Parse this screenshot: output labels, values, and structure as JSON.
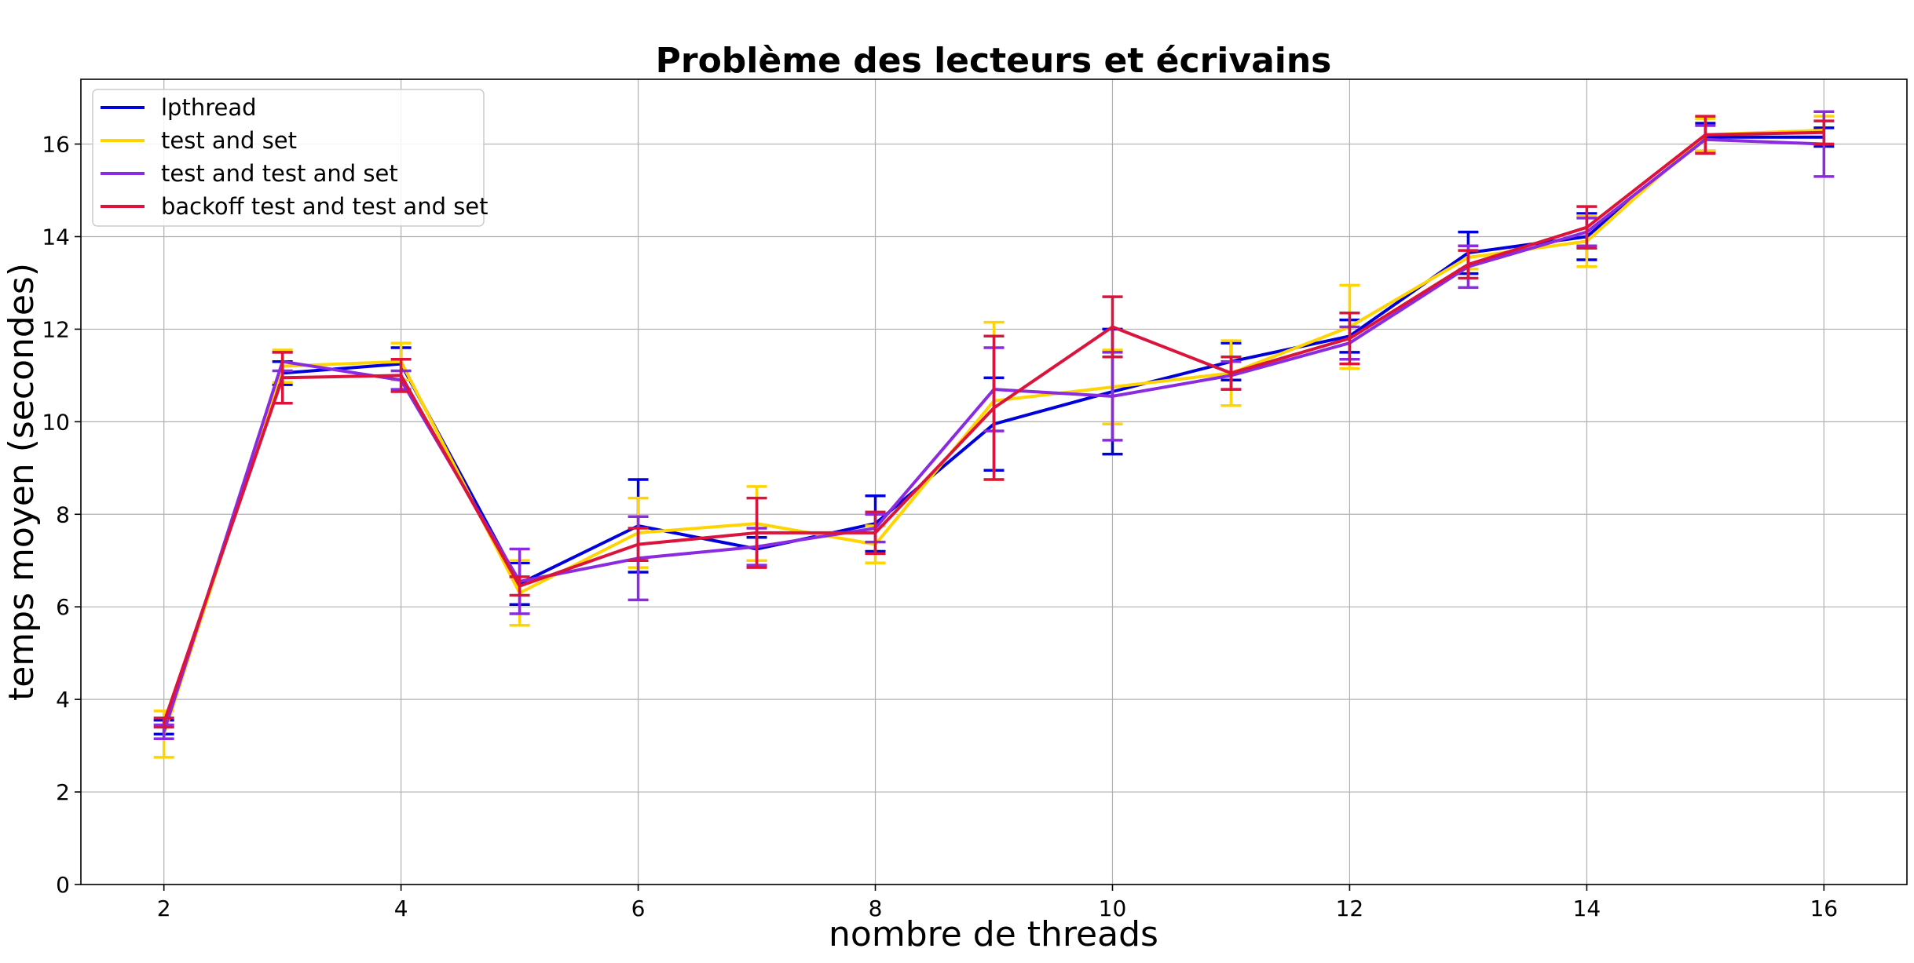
{
  "chart_data": {
    "type": "line",
    "title": "Problème des lecteurs et écrivains",
    "xlabel": "nombre de threads",
    "ylabel": "temps moyen (secondes)",
    "xlim": [
      1.3,
      16.7
    ],
    "ylim": [
      0,
      17.4
    ],
    "xticks": [
      2,
      4,
      6,
      8,
      10,
      12,
      14,
      16
    ],
    "yticks": [
      0,
      2,
      4,
      6,
      8,
      10,
      12,
      14,
      16
    ],
    "grid": true,
    "legend_position": "top-left",
    "x": [
      2,
      3,
      4,
      5,
      6,
      7,
      8,
      9,
      10,
      11,
      12,
      13,
      14,
      15,
      16
    ],
    "series": [
      {
        "name": "lpthread",
        "color": "#0000dd",
        "values": [
          3.4,
          11.05,
          11.25,
          6.5,
          7.75,
          7.25,
          7.8,
          9.95,
          10.65,
          11.3,
          11.85,
          13.65,
          14.0,
          16.15,
          16.15
        ],
        "errors": [
          0.15,
          0.25,
          0.35,
          0.45,
          1.0,
          0.25,
          0.6,
          1.0,
          1.35,
          0.4,
          0.35,
          0.45,
          0.5,
          0.3,
          0.2
        ]
      },
      {
        "name": "test and set",
        "color": "#ffd400",
        "values": [
          3.25,
          11.2,
          11.3,
          6.3,
          7.6,
          7.8,
          7.35,
          10.45,
          10.75,
          11.05,
          12.05,
          13.55,
          13.9,
          16.2,
          16.3
        ],
        "errors": [
          0.5,
          0.35,
          0.4,
          0.7,
          0.75,
          0.8,
          0.4,
          1.7,
          0.8,
          0.7,
          0.9,
          0.25,
          0.55,
          0.35,
          0.3
        ]
      },
      {
        "name": "test and test and set",
        "color": "#8a2be2",
        "values": [
          3.3,
          11.3,
          10.9,
          6.55,
          7.05,
          7.3,
          7.7,
          10.7,
          10.55,
          11.0,
          11.7,
          13.35,
          14.1,
          16.1,
          16.0
        ],
        "errors": [
          0.15,
          0.2,
          0.2,
          0.7,
          0.9,
          0.4,
          0.3,
          0.9,
          0.95,
          0.3,
          0.35,
          0.45,
          0.3,
          0.3,
          0.7
        ]
      },
      {
        "name": "backoff test and test and set",
        "color": "#dc143c",
        "values": [
          3.5,
          10.95,
          11.0,
          6.45,
          7.35,
          7.6,
          7.6,
          10.3,
          12.05,
          11.05,
          11.8,
          13.4,
          14.2,
          16.2,
          16.25
        ],
        "errors": [
          0.1,
          0.55,
          0.35,
          0.2,
          0.35,
          0.75,
          0.45,
          1.55,
          0.65,
          0.35,
          0.55,
          0.3,
          0.45,
          0.4,
          0.25
        ]
      }
    ]
  }
}
